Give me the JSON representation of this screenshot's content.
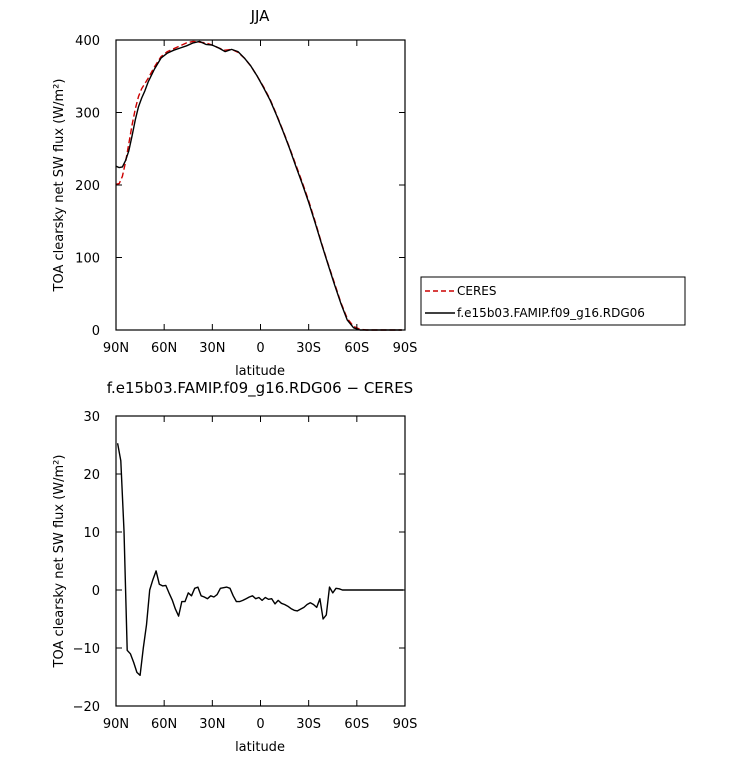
{
  "chart_data": [
    {
      "type": "line",
      "title": "JJA",
      "xlabel": "latitude",
      "ylabel": "TOA clearsky net SW flux (W/m²)",
      "xlim": [
        90,
        -90
      ],
      "ylim": [
        0,
        400
      ],
      "x_ticks": [
        90,
        60,
        30,
        0,
        -30,
        -60,
        -90
      ],
      "x_tick_labels": [
        "90N",
        "60N",
        "30N",
        "0",
        "30S",
        "60S",
        "90S"
      ],
      "y_ticks": [
        0,
        100,
        200,
        300,
        400
      ],
      "y_tick_labels": [
        "0",
        "100",
        "200",
        "300",
        "400"
      ],
      "grid": false,
      "legend_position": "right",
      "series": [
        {
          "name": "CERES",
          "color": "#cc0000",
          "dash": "dashed",
          "x": [
            90,
            88,
            86,
            84,
            82,
            80,
            78,
            76,
            74,
            72,
            70,
            66,
            62,
            58,
            54,
            50,
            46,
            42,
            38,
            34,
            30,
            26,
            22,
            18,
            14,
            10,
            6,
            2,
            -2,
            -6,
            -10,
            -14,
            -18,
            -22,
            -26,
            -30,
            -34,
            -38,
            -42,
            -46,
            -50,
            -54,
            -58,
            -62,
            -66,
            -70,
            -74,
            -78,
            -82,
            -86,
            -88
          ],
          "y": [
            201,
            202,
            212,
            232,
            257,
            283,
            305,
            322,
            333,
            340,
            347,
            363,
            377,
            384,
            388,
            392,
            396,
            398,
            397,
            396,
            393,
            389,
            386,
            387,
            383,
            375,
            364,
            350,
            335,
            318,
            297,
            275,
            252,
            228,
            204,
            178,
            150,
            120,
            92,
            65,
            38,
            16,
            5,
            1,
            0,
            0,
            0,
            0,
            0,
            0,
            0
          ]
        },
        {
          "name": "f.e15b03.FAMIP.f09_g16.RDG06",
          "color": "#000000",
          "dash": "solid",
          "x": [
            90,
            88,
            86,
            84,
            82,
            80,
            78,
            76,
            74,
            72,
            70,
            66,
            62,
            58,
            54,
            50,
            46,
            42,
            38,
            34,
            30,
            26,
            22,
            18,
            14,
            10,
            6,
            2,
            -2,
            -6,
            -10,
            -14,
            -18,
            -22,
            -26,
            -30,
            -34,
            -38,
            -42,
            -46,
            -50,
            -54,
            -58,
            -62,
            -66,
            -70,
            -74,
            -78,
            -82,
            -86,
            -88
          ],
          "y": [
            226,
            224,
            225,
            234,
            247,
            268,
            290,
            308,
            320,
            330,
            342,
            360,
            375,
            382,
            386,
            389,
            392,
            396,
            398,
            394,
            393,
            389,
            384,
            387,
            384,
            375,
            364,
            350,
            334,
            317,
            296,
            274,
            251,
            226,
            202,
            176,
            148,
            119,
            91,
            63,
            37,
            14,
            3,
            0,
            0,
            0,
            0,
            0,
            0,
            0,
            0
          ]
        }
      ]
    },
    {
      "type": "line",
      "title": "f.e15b03.FAMIP.f09_g16.RDG06 − CERES",
      "xlabel": "latitude",
      "ylabel": "TOA clearsky net SW flux (W/m²)",
      "xlim": [
        90,
        -90
      ],
      "ylim": [
        -20,
        30
      ],
      "x_ticks": [
        90,
        60,
        30,
        0,
        -30,
        -60,
        -90
      ],
      "x_tick_labels": [
        "90N",
        "60N",
        "30N",
        "0",
        "30S",
        "60S",
        "90S"
      ],
      "y_ticks": [
        -20,
        -10,
        0,
        10,
        20,
        30
      ],
      "y_tick_labels": [
        "−20",
        "−10",
        "0",
        "10",
        "20",
        "30"
      ],
      "grid": false,
      "series": [
        {
          "color": "#000000",
          "dash": "solid",
          "x": [
            89,
            87,
            85,
            83,
            81,
            79,
            77,
            75,
            73,
            71,
            69,
            67,
            65,
            63,
            61,
            59,
            57,
            55,
            53,
            51,
            49,
            47,
            45,
            43,
            41,
            39,
            37,
            35,
            33,
            31,
            29,
            27,
            25,
            23,
            21,
            19,
            17,
            15,
            13,
            11,
            9,
            7,
            5,
            3,
            1,
            -1,
            -3,
            -5,
            -7,
            -9,
            -11,
            -13,
            -15,
            -17,
            -19,
            -21,
            -23,
            -25,
            -27,
            -29,
            -31,
            -33,
            -35,
            -37,
            -39,
            -41,
            -43,
            -45,
            -47,
            -49,
            -51,
            -53,
            -55,
            -57,
            -59,
            -61,
            -63,
            -65,
            -67,
            -69,
            -71,
            -73,
            -75,
            -77,
            -79,
            -81,
            -83,
            -85,
            -87,
            -89
          ],
          "y": [
            25.3,
            22.3,
            10.2,
            -10.4,
            -11.0,
            -12.5,
            -14.2,
            -14.7,
            -10.0,
            -6.0,
            0.0,
            1.8,
            3.3,
            1.0,
            0.7,
            0.8,
            -0.5,
            -1.7,
            -3.3,
            -4.5,
            -2.0,
            -2.0,
            -0.5,
            -1.0,
            0.3,
            0.5,
            -1.0,
            -1.2,
            -1.5,
            -1.0,
            -1.2,
            -0.8,
            0.3,
            0.4,
            0.5,
            0.3,
            -1.0,
            -2.0,
            -2.0,
            -1.8,
            -1.5,
            -1.2,
            -1.0,
            -1.5,
            -1.3,
            -1.8,
            -1.3,
            -1.6,
            -1.5,
            -2.4,
            -1.8,
            -2.3,
            -2.5,
            -2.8,
            -3.2,
            -3.5,
            -3.6,
            -3.3,
            -3.0,
            -2.5,
            -2.2,
            -2.5,
            -3.0,
            -1.5,
            -5.0,
            -4.3,
            0.5,
            -0.5,
            0.3,
            0.2,
            0.0,
            0.0,
            0.0,
            0.0,
            0.0,
            0.0,
            0.0,
            0.0,
            0.0,
            0.0,
            0.0,
            0.0,
            0.0,
            0.0,
            0.0,
            0.0,
            0.0,
            0.0,
            0.0,
            0.0
          ]
        }
      ]
    }
  ]
}
